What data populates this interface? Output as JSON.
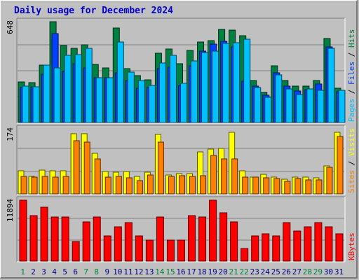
{
  "title": "Daily usage for December 2024",
  "colors": {
    "hits": "#008040",
    "files": "#0040ff",
    "pages": "#00c0ff",
    "visits": "#ffff00",
    "sites": "#ff8000",
    "kbytes": "#ff0000",
    "weekend_label": "#008040",
    "weekday_label": "#000080"
  },
  "chart_data": [
    {
      "type": "bar",
      "panel": "hits-files-pages",
      "max_label": "648",
      "ylim": [
        0,
        648
      ],
      "right_label": {
        "pages": "Pages",
        "sep1": " / ",
        "files": "Files",
        "sep2": " / ",
        "hits": "Hits"
      },
      "categories": [
        "1",
        "2",
        "3",
        "4",
        "5",
        "6",
        "7",
        "8",
        "9",
        "10",
        "11",
        "12",
        "13",
        "14",
        "15",
        "16",
        "17",
        "18",
        "19",
        "20",
        "21",
        "22",
        "23",
        "24",
        "25",
        "26",
        "27",
        "28",
        "29",
        "30",
        "31"
      ],
      "series": [
        {
          "name": "Hits",
          "values": [
            262,
            258,
            370,
            648,
            493,
            478,
            500,
            374,
            350,
            608,
            345,
            300,
            276,
            444,
            473,
            376,
            462,
            516,
            528,
            597,
            592,
            556,
            270,
            193,
            364,
            268,
            232,
            232,
            272,
            540,
            222
          ]
        },
        {
          "name": "Files",
          "values": [
            227,
            230,
            310,
            572,
            330,
            378,
            352,
            288,
            290,
            320,
            268,
            220,
            226,
            348,
            356,
            240,
            364,
            460,
            506,
            520,
            484,
            264,
            232,
            176,
            320,
            236,
            204,
            212,
            246,
            484,
            200
          ]
        },
        {
          "name": "Pages",
          "values": [
            233,
            229,
            368,
            352,
            433,
            438,
            475,
            289,
            290,
            516,
            322,
            270,
            239,
            382,
            430,
            252,
            395,
            450,
            458,
            510,
            512,
            534,
            227,
            160,
            304,
            216,
            181,
            218,
            207,
            476,
            207
          ]
        }
      ]
    },
    {
      "type": "bar",
      "panel": "visits-sites",
      "max_label": "174",
      "ylim": [
        0,
        174
      ],
      "right_label": {
        "sites": "Sites",
        "sep": " / ",
        "visits": "Visits"
      },
      "categories": [
        "1",
        "2",
        "3",
        "4",
        "5",
        "6",
        "7",
        "8",
        "9",
        "10",
        "11",
        "12",
        "13",
        "14",
        "15",
        "16",
        "17",
        "18",
        "19",
        "20",
        "21",
        "22",
        "23",
        "24",
        "25",
        "26",
        "27",
        "28",
        "29",
        "30",
        "31"
      ],
      "series": [
        {
          "name": "Visits",
          "values": [
            62,
            47,
            64,
            62,
            62,
            160,
            160,
            108,
            59,
            58,
            59,
            47,
            58,
            159,
            51,
            54,
            54,
            112,
            120,
            122,
            165,
            62,
            44,
            53,
            44,
            40,
            44,
            44,
            43,
            74,
            165
          ]
        },
        {
          "name": "Sites",
          "values": [
            47,
            45,
            46,
            45,
            47,
            142,
            138,
            94,
            44,
            47,
            43,
            35,
            51,
            138,
            46,
            48,
            46,
            48,
            102,
            94,
            94,
            44,
            44,
            43,
            41,
            34,
            41,
            38,
            38,
            71,
            154
          ]
        }
      ]
    },
    {
      "type": "bar",
      "panel": "kbytes",
      "max_label": "11894",
      "ylim": [
        0,
        11894
      ],
      "right_label": {
        "kbytes": "KBytes"
      },
      "categories": [
        "1",
        "2",
        "3",
        "4",
        "5",
        "6",
        "7",
        "8",
        "9",
        "10",
        "11",
        "12",
        "13",
        "14",
        "15",
        "16",
        "17",
        "18",
        "19",
        "20",
        "21",
        "22",
        "23",
        "24",
        "25",
        "26",
        "27",
        "28",
        "29",
        "30",
        "31"
      ],
      "series": [
        {
          "name": "KBytes",
          "values": [
            11894,
            8918,
            10520,
            8576,
            8576,
            3770,
            7719,
            8576,
            4970,
            6685,
            7547,
            4970,
            4113,
            8576,
            4113,
            4113,
            8918,
            8576,
            11894,
            9428,
            7719,
            2400,
            4970,
            5313,
            4970,
            7547,
            5828,
            6685,
            7547,
            6685,
            5313
          ]
        }
      ]
    }
  ],
  "day_labels": [
    "1",
    "2",
    "3",
    "4",
    "5",
    "6",
    "7",
    "8",
    "9",
    "10",
    "11",
    "12",
    "13",
    "14",
    "15",
    "16",
    "17",
    "18",
    "19",
    "20",
    "21",
    "22",
    "23",
    "24",
    "25",
    "26",
    "27",
    "28",
    "29",
    "30",
    "31"
  ],
  "weekend_days": [
    1,
    7,
    8,
    14,
    15,
    21,
    22,
    28,
    29
  ]
}
